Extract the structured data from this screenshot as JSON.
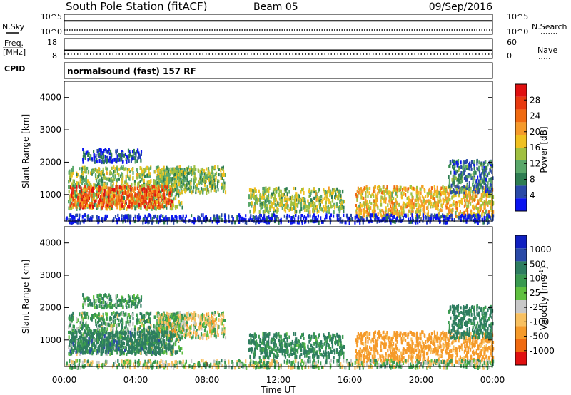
{
  "header": {
    "station": "South Pole Station (fitACF)",
    "beam": "Beam 05",
    "date": "09/Sep/2016"
  },
  "strip_labels": {
    "nsky": "N.Sky",
    "freq_line1": "Freq.",
    "freq_line2": "[MHz]",
    "cpid": "CPID",
    "nsearch": "N.Search",
    "nave": "Nave",
    "cpid_value": "normalsound (fast) 157 RF"
  },
  "strip_ticks": {
    "noise_left_top": "10^5",
    "noise_left_bottom": "10^0",
    "noise_right_top": "10^5",
    "noise_right_bottom": "10^0",
    "freq_top": "18",
    "freq_bottom": "8",
    "nave_top": "60",
    "nave_bottom": "0"
  },
  "axes": {
    "ylabel": "Slant Range [km]",
    "xlabel": "Time UT",
    "y_ticks": [
      "1000",
      "2000",
      "3000",
      "4000"
    ],
    "x_ticks": [
      "00:00",
      "04:00",
      "08:00",
      "12:00",
      "16:00",
      "20:00",
      "00:00"
    ]
  },
  "colorbars": {
    "power": {
      "label": "Power [dB]",
      "ticks": [
        "4",
        "8",
        "12",
        "16",
        "20",
        "24",
        "28"
      ],
      "colors": [
        "#0a14f0",
        "#2a4aa8",
        "#2e7d52",
        "#5aa86a",
        "#a0c040",
        "#f0c020",
        "#f59a2a",
        "#f06a10",
        "#e83a10",
        "#e01010"
      ]
    },
    "velocity": {
      "label": "Velocity [m s^-1]",
      "ticks": [
        "-1000",
        "-500",
        "-100",
        "-25",
        "25",
        "100",
        "500",
        "1000"
      ],
      "colors": [
        "#e01010",
        "#f06a10",
        "#f59a2a",
        "#f8c060",
        "#c8c8c8",
        "#60c040",
        "#3a9a50",
        "#2e7d60",
        "#2a4aa8",
        "#1020c0"
      ]
    }
  },
  "chart_data": {
    "type": "heatmap",
    "title": "South Pole Station (fitACF)",
    "subtitle": "Beam 05",
    "date": "09/Sep/2016",
    "x_unit": "hours UT",
    "xlim": [
      0,
      24
    ],
    "ylim": [
      180,
      4500
    ],
    "noise_sky_level_log10": 1.2,
    "frequency_mhz": 12,
    "nave": 30,
    "echo_regions": [
      {
        "t0": 0.2,
        "t1": 6.6,
        "r0": 600,
        "r1": 1900,
        "power_db": 14,
        "velocity": 60
      },
      {
        "t0": 5.0,
        "t1": 9.0,
        "r0": 1100,
        "r1": 1900,
        "power_db": 13,
        "velocity": -20
      },
      {
        "t0": 0.3,
        "t1": 6.0,
        "r0": 650,
        "r1": 1300,
        "power_db": 24,
        "velocity": 300
      },
      {
        "t0": 1.0,
        "t1": 4.3,
        "r0": 2050,
        "r1": 2450,
        "power_db": 6,
        "velocity": 80
      },
      {
        "t0": 10.3,
        "t1": 15.7,
        "r0": 500,
        "r1": 1250,
        "power_db": 14,
        "velocity": 120
      },
      {
        "t0": 16.3,
        "t1": 24.0,
        "r0": 350,
        "r1": 1300,
        "power_db": 18,
        "velocity": -200
      },
      {
        "t0": 21.5,
        "t1": 24.0,
        "r0": 1100,
        "r1": 2100,
        "power_db": 9,
        "velocity": 200
      },
      {
        "t0": 0.0,
        "t1": 24.0,
        "r0": 180,
        "r1": 420,
        "power_db": 4,
        "velocity": 20
      }
    ]
  }
}
